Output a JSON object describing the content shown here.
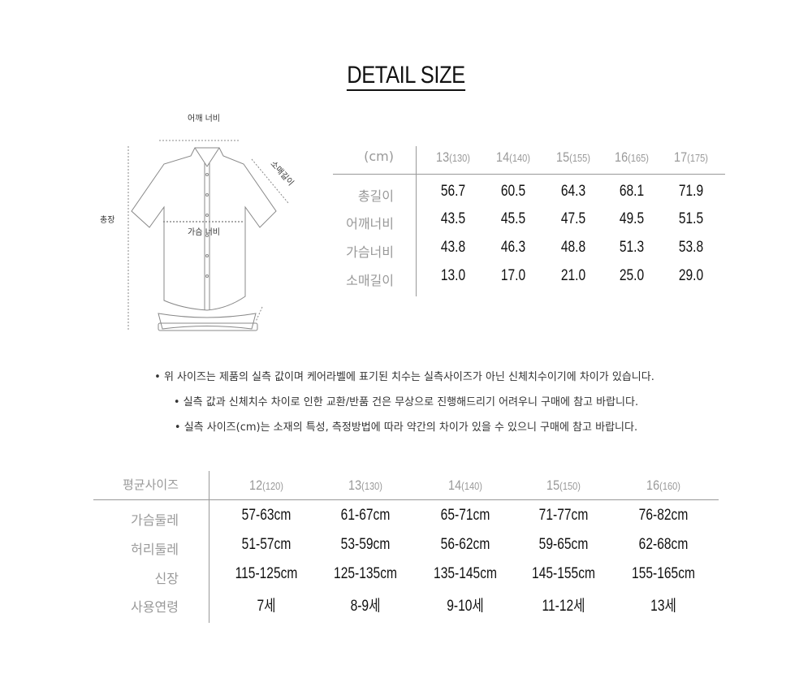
{
  "title": "DETAIL SIZE",
  "diagram": {
    "shoulder": "어깨 너비",
    "sleeve": "소매길이",
    "length": "총장",
    "chest": "가슴 너비"
  },
  "detail_table": {
    "unit": "(cm)",
    "columns": [
      {
        "size": "13",
        "height": "(130)"
      },
      {
        "size": "14",
        "height": "(140)"
      },
      {
        "size": "15",
        "height": "(155)"
      },
      {
        "size": "16",
        "height": "(165)"
      },
      {
        "size": "17",
        "height": "(175)"
      }
    ],
    "rows": [
      {
        "label": "총길이",
        "values": [
          "56.7",
          "60.5",
          "64.3",
          "68.1",
          "71.9"
        ]
      },
      {
        "label": "어깨너비",
        "values": [
          "43.5",
          "45.5",
          "47.5",
          "49.5",
          "51.5"
        ]
      },
      {
        "label": "가슴너비",
        "values": [
          "43.8",
          "46.3",
          "48.8",
          "51.3",
          "53.8"
        ]
      },
      {
        "label": "소매길이",
        "values": [
          "13.0",
          "17.0",
          "21.0",
          "25.0",
          "29.0"
        ]
      }
    ]
  },
  "notes": [
    "•  위 사이즈는 제품의 실측 값이며 케어라벨에 표기된 치수는 실측사이즈가 아닌  신체치수이기에 차이가 있습니다.",
    "•  실측 값과 신체치수 차이로 인한 교환/반품 건은 무상으로 진행해드리기 어려우니 구매에 참고 바랍니다.",
    "•  실측 사이즈(cm)는 소재의 특성, 측정방법에 따라 약간의 차이가 있을 수 있으니 구매에 참고 바랍니다."
  ],
  "average_table": {
    "header": "평균사이즈",
    "columns": [
      {
        "size": "12",
        "height": "(120)"
      },
      {
        "size": "13",
        "height": "(130)"
      },
      {
        "size": "14",
        "height": "(140)"
      },
      {
        "size": "15",
        "height": "(150)"
      },
      {
        "size": "16",
        "height": "(160)"
      }
    ],
    "rows": [
      {
        "label": "가슴둘레",
        "values": [
          "57-63cm",
          "61-67cm",
          "65-71cm",
          "71-77cm",
          "76-82cm"
        ]
      },
      {
        "label": "허리둘레",
        "values": [
          "51-57cm",
          "53-59cm",
          "56-62cm",
          "59-65cm",
          "62-68cm"
        ]
      },
      {
        "label": "신장",
        "values": [
          "115-125cm",
          "125-135cm",
          "135-145cm",
          "145-155cm",
          "155-165cm"
        ]
      },
      {
        "label": "사용연령",
        "values": [
          "7세",
          "8-9세",
          "9-10세",
          "11-12세",
          "13세"
        ]
      }
    ]
  }
}
